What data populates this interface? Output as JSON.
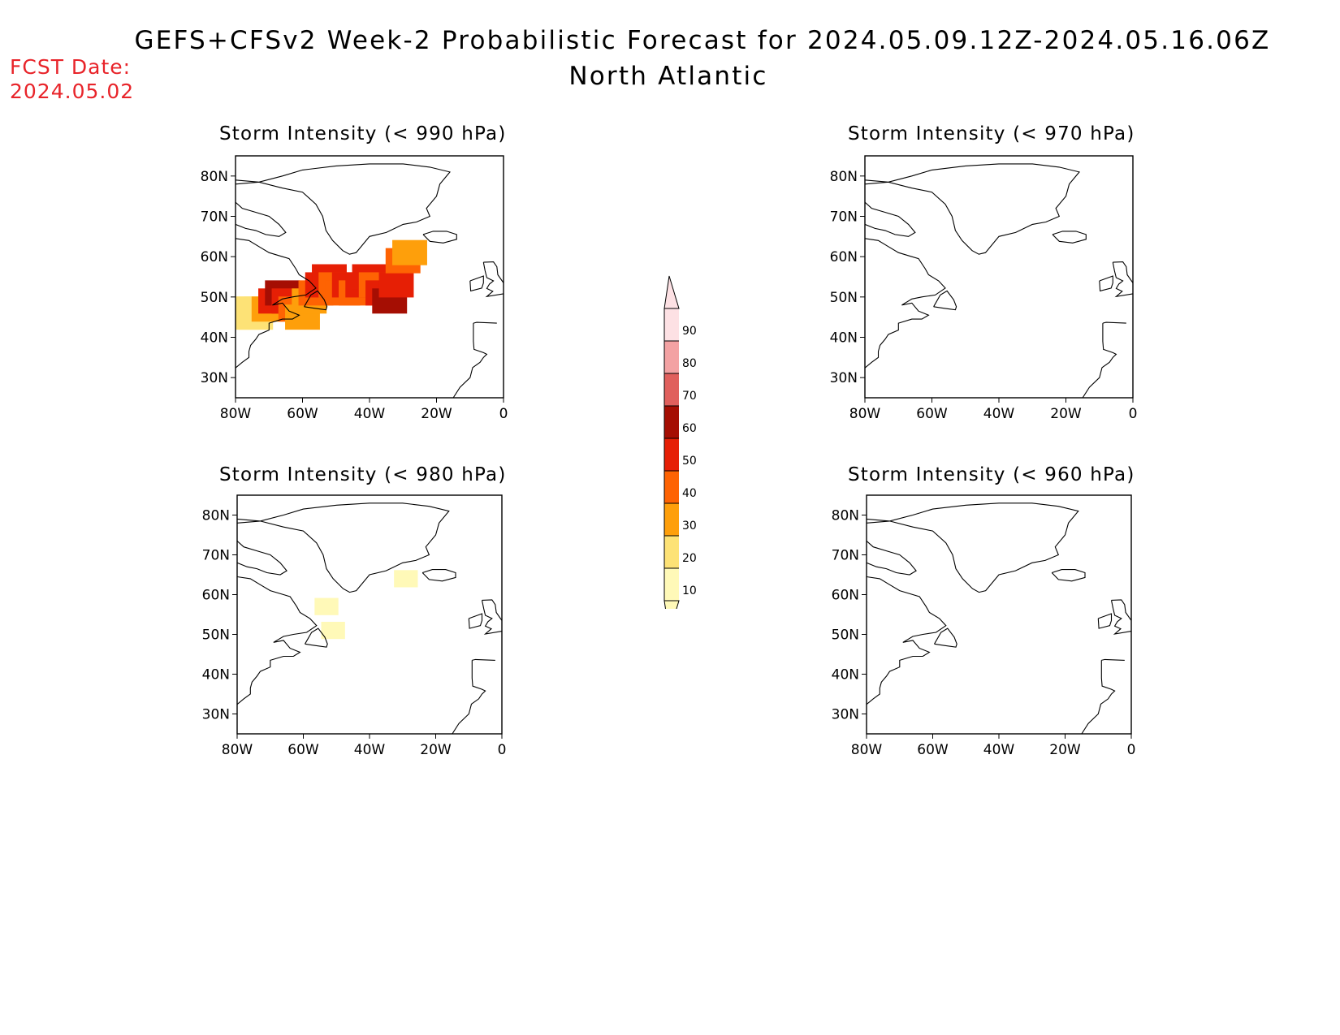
{
  "header": {
    "title": "GEFS+CFSv2 Week-2 Probabilistic Forecast for 2024.05.09.12Z-2024.05.16.06Z",
    "subtitle": "North Atlantic",
    "fcst_label": "FCST Date:",
    "fcst_date": "2024.05.02",
    "fcst_color": "#e8242a"
  },
  "axes": {
    "lat_ticks": [
      "80N",
      "70N",
      "60N",
      "50N",
      "40N",
      "30N"
    ],
    "lon_ticks": [
      "80W",
      "60W",
      "40W",
      "20W",
      "0"
    ],
    "lat_range": [
      25,
      85
    ],
    "lon_range": [
      -80,
      0
    ]
  },
  "panels": [
    {
      "id": "p990",
      "title": "Storm Intensity (< 990 hPa)"
    },
    {
      "id": "p970",
      "title": "Storm Intensity (< 970 hPa)"
    },
    {
      "id": "p980",
      "title": "Storm Intensity (< 980 hPa)"
    },
    {
      "id": "p960",
      "title": "Storm Intensity (< 960 hPa)"
    }
  ],
  "colorbar": {
    "labels": [
      "10",
      "20",
      "30",
      "40",
      "50",
      "60",
      "70",
      "80",
      "90"
    ],
    "colors": [
      "#fff9b8",
      "#fde276",
      "#fe9f0b",
      "#fe6303",
      "#e61f05",
      "#a50e03",
      "#e0605d",
      "#f3a2a3",
      "#fde1e4"
    ]
  },
  "fields": {
    "p990": [
      {
        "lon": -80,
        "lat": 47,
        "level": 20
      },
      {
        "lon": -78,
        "lat": 45,
        "level": 20
      },
      {
        "lon": -76,
        "lat": 47,
        "level": 20
      },
      {
        "lon": -74,
        "lat": 45,
        "level": 20
      },
      {
        "lon": -72,
        "lat": 47,
        "level": 20
      },
      {
        "lon": -70,
        "lat": 47,
        "level": 30
      },
      {
        "lon": -68,
        "lat": 49,
        "level": 50
      },
      {
        "lon": -66,
        "lat": 51,
        "level": 60
      },
      {
        "lon": -64,
        "lat": 49,
        "level": 50
      },
      {
        "lon": -62,
        "lat": 47,
        "level": 40
      },
      {
        "lon": -60,
        "lat": 45,
        "level": 30
      },
      {
        "lon": -58,
        "lat": 49,
        "level": 30
      },
      {
        "lon": -56,
        "lat": 51,
        "level": 40
      },
      {
        "lon": -54,
        "lat": 53,
        "level": 50
      },
      {
        "lon": -52,
        "lat": 55,
        "level": 50
      },
      {
        "lon": -50,
        "lat": 53,
        "level": 40
      },
      {
        "lon": -48,
        "lat": 51,
        "level": 40
      },
      {
        "lon": -46,
        "lat": 53,
        "level": 50
      },
      {
        "lon": -44,
        "lat": 51,
        "level": 40
      },
      {
        "lon": -42,
        "lat": 53,
        "level": 50
      },
      {
        "lon": -40,
        "lat": 55,
        "level": 50
      },
      {
        "lon": -38,
        "lat": 53,
        "level": 40
      },
      {
        "lon": -36,
        "lat": 51,
        "level": 50
      },
      {
        "lon": -34,
        "lat": 49,
        "level": 60
      },
      {
        "lon": -32,
        "lat": 53,
        "level": 50
      },
      {
        "lon": -30,
        "lat": 59,
        "level": 40
      },
      {
        "lon": -28,
        "lat": 61,
        "level": 30
      }
    ],
    "p980": [
      {
        "lon": -53,
        "lat": 57,
        "level": 10
      },
      {
        "lon": -29,
        "lat": 64,
        "level": 10
      },
      {
        "lon": -51,
        "lat": 51,
        "level": 10
      }
    ],
    "p970": [],
    "p960": []
  }
}
